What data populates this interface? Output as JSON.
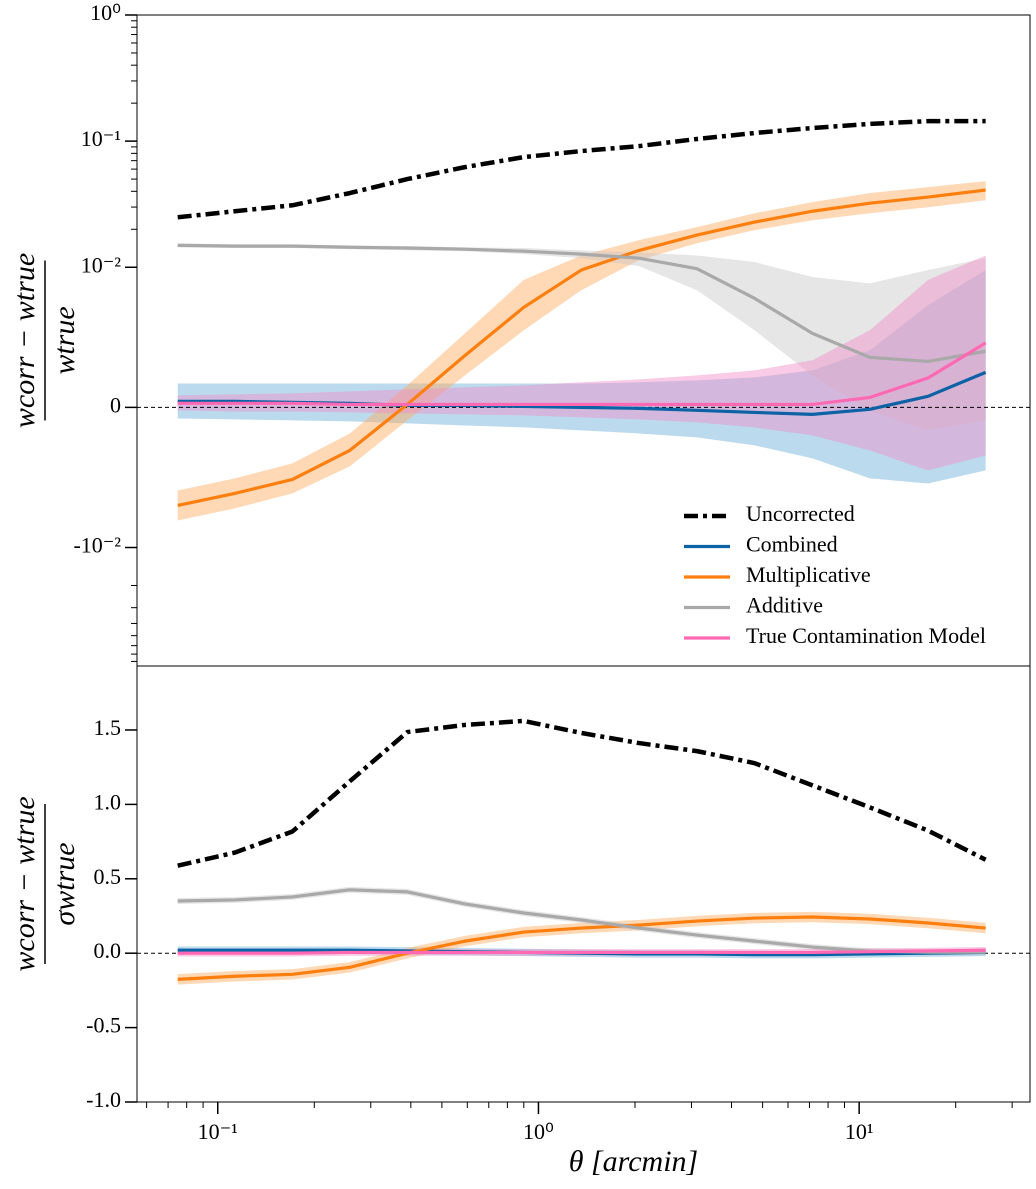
{
  "chart_data": [
    {
      "type": "line",
      "yscale": "symlog",
      "linthresh": 0.01,
      "xscale": "log",
      "ylabel": {
        "numerator": "wcorr − wtrue",
        "denominator": "wtrue"
      },
      "x": [
        0.075,
        0.113,
        0.171,
        0.258,
        0.39,
        0.59,
        0.9,
        1.36,
        2.06,
        3.12,
        4.72,
        7.15,
        10.8,
        16.4,
        24.8
      ],
      "xlim": [
        0.056,
        34.1
      ],
      "ylim": [
        -0.087,
        1
      ],
      "yticks": [
        {
          "value": 1,
          "label": "10⁰"
        },
        {
          "value": 0.1,
          "label": "10⁻¹"
        },
        {
          "value": 0.01,
          "label": "10⁻²"
        },
        0,
        {
          "value": -0.01,
          "label": "-10⁻²"
        }
      ],
      "yminorticks": [
        0.02,
        0.03,
        0.04,
        0.05,
        0.06,
        0.07,
        0.08,
        0.09,
        0.2,
        0.3,
        0.4,
        0.5,
        0.6,
        0.7,
        0.8,
        0.9,
        -0.02,
        -0.03,
        -0.04,
        -0.05,
        -0.06,
        -0.07,
        -0.08
      ],
      "hlines": [
        0
      ],
      "legend": "lower right",
      "series": [
        {
          "name": "Uncorrected",
          "color": "#000000",
          "linestyle": "dashdot",
          "values": [
            0.0249,
            0.0278,
            0.031,
            0.0387,
            0.05,
            0.0622,
            0.0747,
            0.0834,
            0.0913,
            0.104,
            0.116,
            0.127,
            0.137,
            0.144,
            0.144
          ]
        },
        {
          "name": "Combined",
          "color": "#0b62a4",
          "band_color": "#6baed6",
          "linestyle": "solid",
          "values": [
            0.00043,
            0.00043,
            0.00036,
            0.00029,
            0.00014,
            0.00014,
            7e-05,
            0,
            -7e-05,
            -0.00021,
            -0.00036,
            -0.0005,
            -0.00014,
            0.00079,
            0.0025
          ],
          "lower": [
            -0.00079,
            -0.00086,
            -0.00093,
            -0.001,
            -0.00114,
            -0.00129,
            -0.00143,
            -0.00164,
            -0.00186,
            -0.00214,
            -0.00271,
            -0.00364,
            -0.00507,
            -0.00543,
            -0.0045
          ],
          "upper": [
            0.0017,
            0.0017,
            0.0017,
            0.0017,
            0.0017,
            0.0017,
            0.0017,
            0.0017,
            0.00179,
            0.00193,
            0.00214,
            0.00264,
            0.00407,
            0.0073,
            0.0098
          ]
        },
        {
          "name": "Multiplicative",
          "color": "#ff7f0e",
          "band_color": "#ffa95c",
          "linestyle": "solid",
          "values": [
            -0.007,
            -0.00614,
            -0.00514,
            -0.00307,
            0.00021,
            0.0037,
            0.00714,
            0.0098,
            0.0136,
            0.018,
            0.0228,
            0.0278,
            0.0322,
            0.036,
            0.0409
          ],
          "lower": [
            -0.00807,
            -0.00721,
            -0.00614,
            -0.00421,
            -0.00093,
            0.00228,
            0.0055,
            0.00836,
            0.0114,
            0.0155,
            0.0197,
            0.0236,
            0.0268,
            0.0299,
            0.034
          ],
          "upper": [
            -0.00593,
            -0.00507,
            -0.004,
            -0.00186,
            0.00157,
            0.00528,
            0.0091,
            0.0124,
            0.0164,
            0.0208,
            0.0268,
            0.0328,
            0.0387,
            0.0432,
            0.0482
          ]
        },
        {
          "name": "Additive",
          "color": "#a9a9a9",
          "band_color": "#c8c8c8",
          "linestyle": "solid",
          "values": [
            0.0149,
            0.0147,
            0.0147,
            0.0144,
            0.0142,
            0.0139,
            0.0134,
            0.0127,
            0.0118,
            0.0099,
            0.00778,
            0.00528,
            0.00357,
            0.00328,
            0.004
          ],
          "lower": [
            0.0144,
            0.0142,
            0.0142,
            0.0139,
            0.0136,
            0.0134,
            0.0127,
            0.0118,
            0.0102,
            0.00836,
            0.0055,
            0.00228,
            -0.00021,
            -0.00164,
            -0.00093
          ],
          "upper": [
            0.0155,
            0.0152,
            0.0152,
            0.0149,
            0.0147,
            0.0144,
            0.0142,
            0.0136,
            0.0131,
            0.0124,
            0.011,
            0.0093,
            0.00885,
            0.0098,
            0.0118
          ]
        },
        {
          "name": "True Contamination Model",
          "color": "#ff69b4",
          "band_color": "#f28cc8",
          "linestyle": "solid",
          "values": [
            0.00029,
            0.00029,
            0.00029,
            0.00021,
            0.00021,
            0.00021,
            0.00021,
            0.00021,
            0.00021,
            0.00021,
            0.00021,
            0.00021,
            0.00071,
            0.0021,
            0.0046
          ],
          "lower": [
            -0.00021,
            -0.00029,
            -0.00029,
            -0.00036,
            -0.00043,
            -0.0005,
            -0.00057,
            -0.00071,
            -0.00086,
            -0.00107,
            -0.00143,
            -0.002,
            -0.00307,
            -0.0045,
            -0.00343
          ],
          "upper": [
            0.00086,
            0.00093,
            0.001,
            0.00114,
            0.00129,
            0.00143,
            0.00157,
            0.00179,
            0.002,
            0.00228,
            0.00264,
            0.00336,
            0.0055,
            0.0091,
            0.0124
          ]
        }
      ]
    },
    {
      "type": "line",
      "yscale": "linear",
      "xscale": "log",
      "ylabel": {
        "numerator": "wcorr − wtrue",
        "denominator": "σwtrue"
      },
      "xlabel": "θ [arcmin]",
      "x": [
        0.075,
        0.113,
        0.171,
        0.258,
        0.39,
        0.59,
        0.9,
        1.36,
        2.06,
        3.12,
        4.72,
        7.15,
        10.8,
        16.4,
        24.8
      ],
      "xlim": [
        0.056,
        34.1
      ],
      "ylim": [
        -1,
        1.93
      ],
      "xticks": [
        {
          "value": 0.1,
          "label": "10⁻¹"
        },
        {
          "value": 1,
          "label": "10⁰"
        },
        {
          "value": 10,
          "label": "10¹"
        }
      ],
      "xminorticks": [
        0.06,
        0.07,
        0.08,
        0.09,
        0.2,
        0.3,
        0.4,
        0.5,
        0.6,
        0.7,
        0.8,
        0.9,
        2,
        3,
        4,
        5,
        6,
        7,
        8,
        9,
        20,
        30
      ],
      "yticks": [
        {
          "value": -1,
          "label": "-1.0"
        },
        {
          "value": -0.5,
          "label": "-0.5"
        },
        {
          "value": 0,
          "label": "0.0"
        },
        {
          "value": 0.5,
          "label": "0.5"
        },
        {
          "value": 1,
          "label": "1.0"
        },
        {
          "value": 1.5,
          "label": "1.5"
        }
      ],
      "hlines": [
        0
      ],
      "series": [
        {
          "name": "Uncorrected",
          "color": "#000000",
          "linestyle": "dashdot",
          "values": [
            0.588,
            0.676,
            0.818,
            1.155,
            1.486,
            1.534,
            1.561,
            1.48,
            1.412,
            1.358,
            1.277,
            1.128,
            0.98,
            0.824,
            0.628
          ]
        },
        {
          "name": "Combined",
          "color": "#0b62a4",
          "band_color": "#6baed6",
          "linestyle": "solid",
          "values": [
            0.02,
            0.02,
            0.02,
            0.02,
            0.015,
            0.01,
            0.005,
            0,
            -0.005,
            -0.005,
            -0.01,
            -0.01,
            -0.005,
            0,
            0.005
          ],
          "lower": [
            -0.005,
            -0.005,
            -0.005,
            -0.005,
            -0.01,
            -0.015,
            -0.02,
            -0.025,
            -0.03,
            -0.03,
            -0.035,
            -0.035,
            -0.03,
            -0.025,
            -0.02
          ],
          "upper": [
            0.045,
            0.045,
            0.045,
            0.045,
            0.04,
            0.035,
            0.03,
            0.025,
            0.02,
            0.02,
            0.015,
            0.015,
            0.02,
            0.025,
            0.03
          ]
        },
        {
          "name": "Multiplicative",
          "color": "#ff7f0e",
          "band_color": "#ffa95c",
          "linestyle": "solid",
          "values": [
            -0.176,
            -0.155,
            -0.142,
            -0.095,
            0,
            0.081,
            0.142,
            0.169,
            0.189,
            0.216,
            0.236,
            0.243,
            0.23,
            0.203,
            0.169
          ],
          "lower": [
            -0.211,
            -0.19,
            -0.177,
            -0.13,
            -0.035,
            0.046,
            0.107,
            0.134,
            0.154,
            0.181,
            0.201,
            0.208,
            0.195,
            0.168,
            0.134
          ],
          "upper": [
            -0.141,
            -0.12,
            -0.107,
            -0.06,
            0.035,
            0.116,
            0.177,
            0.204,
            0.224,
            0.251,
            0.271,
            0.278,
            0.265,
            0.238,
            0.204
          ]
        },
        {
          "name": "Additive",
          "color": "#a9a9a9",
          "band_color": "#c8c8c8",
          "linestyle": "solid",
          "values": [
            0.351,
            0.358,
            0.378,
            0.426,
            0.412,
            0.331,
            0.27,
            0.223,
            0.169,
            0.122,
            0.081,
            0.041,
            0.014,
            0.007,
            0.007
          ],
          "lower": [
            0.331,
            0.338,
            0.358,
            0.406,
            0.392,
            0.311,
            0.25,
            0.203,
            0.149,
            0.102,
            0.061,
            0.021,
            -0.006,
            -0.013,
            -0.013
          ],
          "upper": [
            0.371,
            0.378,
            0.398,
            0.446,
            0.432,
            0.351,
            0.29,
            0.243,
            0.189,
            0.142,
            0.101,
            0.061,
            0.034,
            0.027,
            0.027
          ]
        },
        {
          "name": "True Contamination Model",
          "color": "#ff69b4",
          "band_color": "#f28cc8",
          "linestyle": "solid",
          "values": [
            0,
            0,
            0,
            0.005,
            0.005,
            0.005,
            0.005,
            0.005,
            0.005,
            0.005,
            0.005,
            0.005,
            0.01,
            0.015,
            0.02
          ],
          "lower": [
            -0.022,
            -0.022,
            -0.022,
            -0.017,
            -0.017,
            -0.017,
            -0.017,
            -0.017,
            -0.017,
            -0.017,
            -0.017,
            -0.017,
            -0.012,
            -0.007,
            -0.002
          ],
          "upper": [
            0.022,
            0.022,
            0.022,
            0.027,
            0.027,
            0.027,
            0.027,
            0.027,
            0.027,
            0.027,
            0.027,
            0.027,
            0.032,
            0.037,
            0.042
          ]
        }
      ]
    }
  ]
}
